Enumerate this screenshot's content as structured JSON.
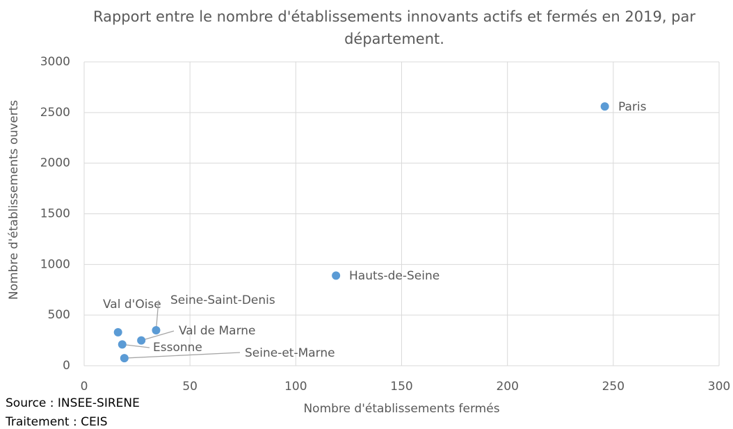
{
  "chart_data": {
    "type": "scatter",
    "title": "Rapport entre le nombre d'établissements innovants actifs et fermés en 2019, par département.",
    "xlabel": "Nombre d'établissements fermés",
    "ylabel": "Nombre d'établissements ouverts",
    "series": [
      {
        "color": "#5b9bd5",
        "labels": [
          "Paris",
          "Hauts-de-Seine",
          "Val d'Oise",
          "Seine-Saint-Denis",
          "Val de Marne",
          "Essonne",
          "Seine-et-Marne"
        ],
        "x": [
          246,
          119,
          16,
          34,
          27,
          18,
          19
        ],
        "values": [
          2560,
          890,
          330,
          350,
          250,
          210,
          75
        ]
      }
    ],
    "xlim": [
      0,
      300
    ],
    "xticks": [
      0,
      50,
      100,
      150,
      200,
      250,
      300
    ],
    "ylim": [
      0,
      3000
    ],
    "yticks": [
      0,
      500,
      1000,
      1500,
      2000,
      2500,
      3000
    ],
    "grid": true,
    "footer": [
      "Source : INSEE-SIRENE",
      "Traitement : CEIS"
    ]
  }
}
